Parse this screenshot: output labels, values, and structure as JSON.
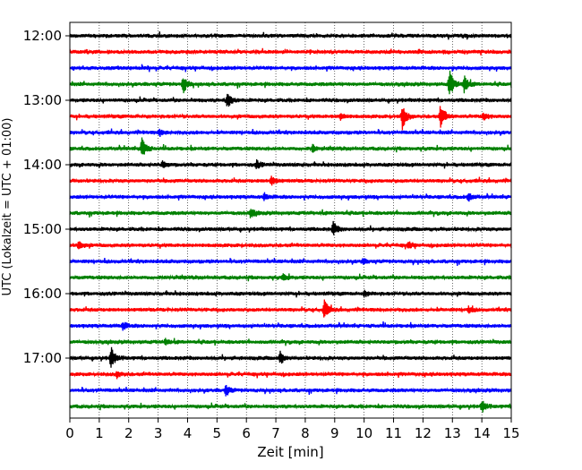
{
  "chart_data": {
    "type": "line",
    "subtype": "helicorder",
    "xlabel": "Zeit  [min]",
    "ylabel": "UTC (Lokalzeit = UTC + 01:00)",
    "xlim": [
      0,
      15
    ],
    "x_ticks": [
      "0",
      "1",
      "2",
      "3",
      "4",
      "5",
      "6",
      "7",
      "8",
      "9",
      "10",
      "11",
      "12",
      "13",
      "14",
      "15"
    ],
    "y_ticks": [
      {
        "label": "12:00",
        "row": 0
      },
      {
        "label": "13:00",
        "row": 4
      },
      {
        "label": "14:00",
        "row": 8
      },
      {
        "label": "15:00",
        "row": 12
      },
      {
        "label": "16:00",
        "row": 16
      },
      {
        "label": "17:00",
        "row": 20
      }
    ],
    "grid": "vertical-dotted",
    "colors": [
      "#000000",
      "#ff0000",
      "#0000ff",
      "#008000"
    ],
    "row_minutes": 15,
    "rows": [
      {
        "start": "12:00",
        "color": "#000000",
        "events": []
      },
      {
        "start": "12:15",
        "color": "#ff0000",
        "events": []
      },
      {
        "start": "12:30",
        "color": "#0000ff",
        "events": []
      },
      {
        "start": "12:45",
        "color": "#008000",
        "events": [
          {
            "t": 3.85,
            "amp": 0.55
          },
          {
            "t": 12.9,
            "amp": 1.0
          },
          {
            "t": 13.4,
            "amp": 0.6
          }
        ]
      },
      {
        "start": "13:00",
        "color": "#000000",
        "events": [
          {
            "t": 5.35,
            "amp": 0.55
          }
        ]
      },
      {
        "start": "13:15",
        "color": "#ff0000",
        "events": [
          {
            "t": 9.2,
            "amp": 0.2
          },
          {
            "t": 11.3,
            "amp": 0.8
          },
          {
            "t": 12.6,
            "amp": 0.85
          },
          {
            "t": 14.05,
            "amp": 0.25
          }
        ]
      },
      {
        "start": "13:30",
        "color": "#0000ff",
        "events": [
          {
            "t": 3.05,
            "amp": 0.25
          }
        ]
      },
      {
        "start": "13:45",
        "color": "#008000",
        "events": [
          {
            "t": 2.45,
            "amp": 0.7
          },
          {
            "t": 8.25,
            "amp": 0.25
          }
        ]
      },
      {
        "start": "14:00",
        "color": "#000000",
        "events": [
          {
            "t": 3.15,
            "amp": 0.2
          },
          {
            "t": 6.35,
            "amp": 0.25
          }
        ]
      },
      {
        "start": "14:15",
        "color": "#ff0000",
        "events": [
          {
            "t": 6.85,
            "amp": 0.3
          }
        ]
      },
      {
        "start": "14:30",
        "color": "#0000ff",
        "events": [
          {
            "t": 6.6,
            "amp": 0.2
          },
          {
            "t": 13.55,
            "amp": 0.25
          }
        ]
      },
      {
        "start": "14:45",
        "color": "#008000",
        "events": [
          {
            "t": 6.15,
            "amp": 0.3
          }
        ]
      },
      {
        "start": "15:00",
        "color": "#000000",
        "events": [
          {
            "t": 8.95,
            "amp": 0.45
          }
        ]
      },
      {
        "start": "15:15",
        "color": "#ff0000",
        "events": [
          {
            "t": 0.3,
            "amp": 0.3
          },
          {
            "t": 11.5,
            "amp": 0.2
          }
        ]
      },
      {
        "start": "15:30",
        "color": "#0000ff",
        "events": [
          {
            "t": 9.95,
            "amp": 0.15
          }
        ]
      },
      {
        "start": "15:45",
        "color": "#008000",
        "events": [
          {
            "t": 7.25,
            "amp": 0.2
          }
        ]
      },
      {
        "start": "16:00",
        "color": "#000000",
        "events": [
          {
            "t": 10.0,
            "amp": 0.2
          }
        ]
      },
      {
        "start": "16:15",
        "color": "#ff0000",
        "events": [
          {
            "t": 8.65,
            "amp": 0.65
          },
          {
            "t": 13.55,
            "amp": 0.2
          }
        ]
      },
      {
        "start": "16:30",
        "color": "#0000ff",
        "events": [
          {
            "t": 1.8,
            "amp": 0.25
          }
        ]
      },
      {
        "start": "16:45",
        "color": "#008000",
        "events": [
          {
            "t": 3.25,
            "amp": 0.2
          }
        ]
      },
      {
        "start": "17:00",
        "color": "#000000",
        "events": [
          {
            "t": 1.4,
            "amp": 0.75
          },
          {
            "t": 7.15,
            "amp": 0.4
          }
        ]
      },
      {
        "start": "17:15",
        "color": "#ff0000",
        "events": [
          {
            "t": 1.6,
            "amp": 0.2
          }
        ]
      },
      {
        "start": "17:30",
        "color": "#0000ff",
        "events": [
          {
            "t": 5.3,
            "amp": 0.35
          }
        ]
      },
      {
        "start": "17:45",
        "color": "#008000",
        "events": [
          {
            "t": 14.0,
            "amp": 0.4
          }
        ]
      }
    ]
  }
}
